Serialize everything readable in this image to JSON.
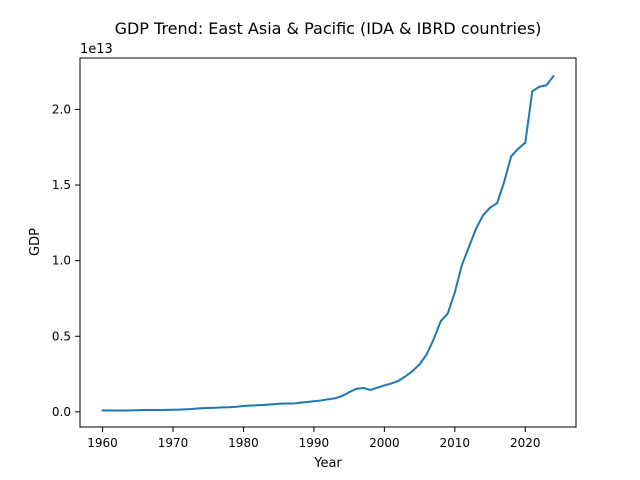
{
  "chart_data": {
    "type": "line",
    "title": "GDP Trend: East Asia & Pacific (IDA & IBRD countries)",
    "xlabel": "Year",
    "ylabel": "GDP",
    "offset_label": "1e13",
    "xlim": [
      1956.8,
      2027.2
    ],
    "ylim": [
      -0.1,
      2.34
    ],
    "x_ticks": [
      1960,
      1970,
      1980,
      1990,
      2000,
      2010,
      2020
    ],
    "x_tick_labels": [
      "1960",
      "1970",
      "1980",
      "1990",
      "2000",
      "2010",
      "2020"
    ],
    "y_ticks": [
      0.0,
      0.5,
      1.0,
      1.5,
      2.0
    ],
    "y_tick_labels": [
      "0.0",
      "0.5",
      "1.0",
      "1.5",
      "2.0"
    ],
    "grid": false,
    "line_color": "#1f77b4",
    "series": [
      {
        "x": [
          1960,
          1961,
          1962,
          1963,
          1964,
          1965,
          1966,
          1967,
          1968,
          1969,
          1970,
          1971,
          1972,
          1973,
          1974,
          1975,
          1976,
          1977,
          1978,
          1979,
          1980,
          1981,
          1982,
          1983,
          1984,
          1985,
          1986,
          1987,
          1988,
          1989,
          1990,
          1991,
          1992,
          1993,
          1994,
          1995,
          1996,
          1997,
          1998,
          1999,
          2000,
          2001,
          2002,
          2003,
          2004,
          2005,
          2006,
          2007,
          2008,
          2009,
          2010,
          2011,
          2012,
          2013,
          2014,
          2015,
          2016,
          2017,
          2018,
          2019,
          2020,
          2021,
          2022,
          2023,
          2024
        ],
        "values": [
          0.01,
          0.009,
          0.009,
          0.009,
          0.01,
          0.011,
          0.012,
          0.012,
          0.012,
          0.013,
          0.014,
          0.015,
          0.017,
          0.021,
          0.024,
          0.026,
          0.027,
          0.03,
          0.031,
          0.034,
          0.039,
          0.042,
          0.044,
          0.046,
          0.05,
          0.054,
          0.055,
          0.055,
          0.06,
          0.065,
          0.07,
          0.075,
          0.083,
          0.09,
          0.105,
          0.13,
          0.152,
          0.158,
          0.145,
          0.16,
          0.175,
          0.188,
          0.205,
          0.235,
          0.27,
          0.315,
          0.38,
          0.48,
          0.6,
          0.65,
          0.79,
          0.97,
          1.09,
          1.21,
          1.3,
          1.35,
          1.38,
          1.52,
          1.69,
          1.74,
          1.78,
          2.12,
          2.15,
          2.16,
          2.22
        ]
      }
    ]
  }
}
